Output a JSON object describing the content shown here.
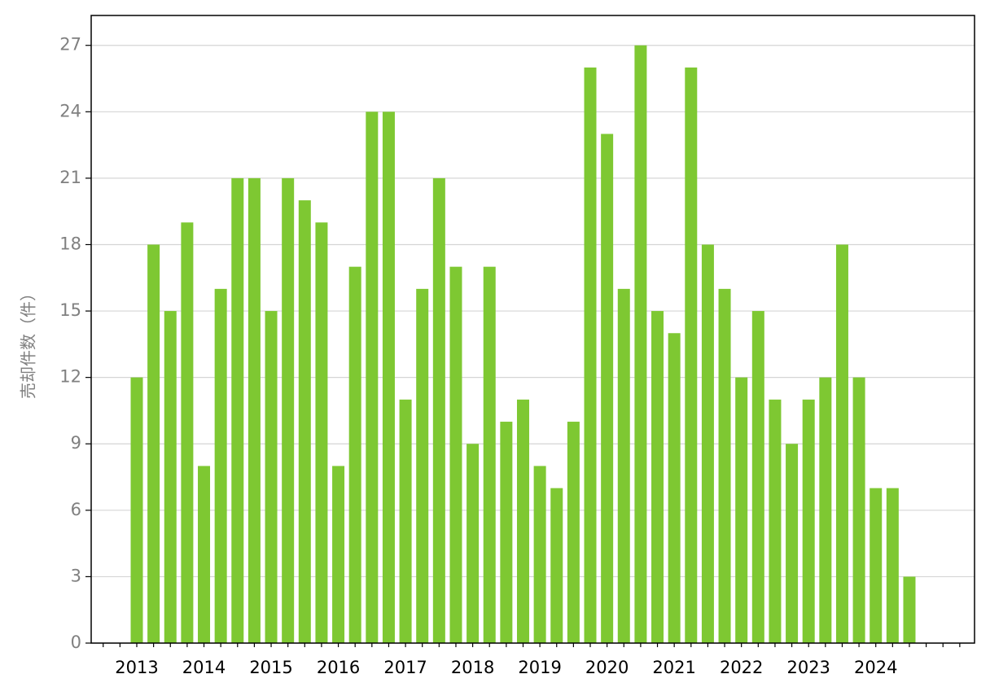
{
  "chart_data": {
    "type": "bar",
    "y_label": "売却件数（件）",
    "categories": [
      "2013",
      null,
      null,
      null,
      "2014",
      null,
      null,
      null,
      "2015",
      null,
      null,
      null,
      "2016",
      null,
      null,
      null,
      "2017",
      null,
      null,
      null,
      "2018",
      null,
      null,
      null,
      "2019",
      null,
      null,
      null,
      "2020",
      null,
      null,
      null,
      "2021",
      null,
      null,
      null,
      "2022",
      null,
      null,
      null,
      "2023",
      null,
      null,
      null,
      "2024",
      null,
      null
    ],
    "values": [
      12,
      18,
      15,
      19,
      8,
      16,
      21,
      21,
      15,
      21,
      20,
      19,
      8,
      17,
      24,
      24,
      11,
      16,
      21,
      17,
      9,
      17,
      10,
      11,
      8,
      7,
      10,
      26,
      23,
      16,
      27,
      15,
      14,
      26,
      18,
      16,
      12,
      15,
      11,
      9,
      11,
      12,
      18,
      12,
      7,
      7,
      3
    ],
    "color": "#7ec832",
    "ylim": [
      0,
      28.35
    ],
    "yticks": [
      0,
      3,
      6,
      9,
      12,
      15,
      18,
      21,
      24,
      27
    ],
    "grid": true
  }
}
